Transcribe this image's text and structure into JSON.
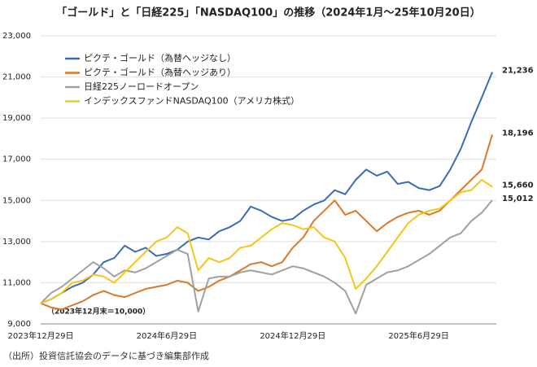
{
  "chart_data": {
    "type": "line",
    "title": "「ゴールド」と「日経225」「NASDAQ100」の推移（2024年1月〜25年10月20日）",
    "annotation": "（2023年12月末＝10,000）",
    "source": "（出所）投資信託協会のデータに基づき編集部作成",
    "categories": [
      "2023年12月29日",
      null,
      null,
      null,
      null,
      null,
      null,
      null,
      null,
      null,
      null,
      null,
      "2024年6月29日",
      null,
      null,
      null,
      null,
      null,
      null,
      null,
      null,
      null,
      null,
      null,
      "2024年12月29日",
      null,
      null,
      null,
      null,
      null,
      null,
      null,
      null,
      null,
      null,
      null,
      "2025年6月29日",
      null,
      null,
      null,
      null,
      null,
      null,
      null
    ],
    "ylim": [
      9000,
      23000
    ],
    "yticks": [
      {
        "value": 9000,
        "label": "9,000"
      },
      {
        "value": 11000,
        "label": "11,000"
      },
      {
        "value": 13000,
        "label": "13,000"
      },
      {
        "value": 15000,
        "label": "15,000"
      },
      {
        "value": 17000,
        "label": "17,000"
      },
      {
        "value": 19000,
        "label": "19,000"
      },
      {
        "value": 21000,
        "label": "21,000"
      },
      {
        "value": 23000,
        "label": "23,000"
      }
    ],
    "grid": true,
    "legend": "upper-left",
    "series": [
      {
        "name": "ピクテ・ゴールド（為替ヘッジなし）",
        "color": "#3b6bb5",
        "values": [
          10000,
          10200,
          10500,
          10800,
          11000,
          11400,
          12000,
          12200,
          12800,
          12500,
          12700,
          12300,
          12400,
          12600,
          13000,
          13200,
          13100,
          13500,
          13700,
          14000,
          14700,
          14500,
          14200,
          14000,
          14100,
          14500,
          14800,
          15000,
          15500,
          15300,
          16000,
          16500,
          16200,
          16400,
          15800,
          15900,
          15600,
          15500,
          15700,
          16500,
          17500,
          18800,
          20000,
          21236
        ],
        "value_labels": [
          null,
          null,
          null,
          null,
          null,
          null,
          null,
          null,
          null,
          null,
          null,
          null,
          null,
          null,
          null,
          null,
          null,
          null,
          null,
          null,
          null,
          null,
          null,
          null,
          null,
          null,
          null,
          null,
          null,
          null,
          null,
          null,
          null,
          null,
          null,
          null,
          null,
          null,
          null,
          null,
          null,
          null,
          null,
          "21,236"
        ]
      },
      {
        "name": "ピクテ・ゴールド（為替ヘッジあり）",
        "color": "#d9792b",
        "values": [
          10000,
          9800,
          9700,
          9900,
          10100,
          10400,
          10600,
          10400,
          10300,
          10500,
          10700,
          10800,
          10900,
          11100,
          11000,
          10600,
          10800,
          11100,
          11300,
          11600,
          11900,
          12000,
          11800,
          12000,
          12700,
          13200,
          14000,
          14500,
          15000,
          14300,
          14500,
          14000,
          13500,
          13900,
          14200,
          14400,
          14500,
          14300,
          14500,
          15000,
          15500,
          16000,
          16500,
          18196
        ],
        "value_labels": [
          null,
          null,
          null,
          null,
          null,
          null,
          null,
          null,
          null,
          null,
          null,
          null,
          null,
          null,
          null,
          null,
          null,
          null,
          null,
          null,
          null,
          null,
          null,
          null,
          null,
          null,
          null,
          null,
          null,
          null,
          null,
          null,
          null,
          null,
          null,
          null,
          null,
          null,
          null,
          null,
          null,
          null,
          null,
          "18,196"
        ]
      },
      {
        "name": "日経225ノーロードオープン",
        "color": "#a0a0a0",
        "values": [
          10000,
          10500,
          10800,
          11200,
          11600,
          12000,
          11700,
          11300,
          11600,
          11500,
          11700,
          12000,
          12300,
          12600,
          12400,
          9600,
          11200,
          11300,
          11300,
          11500,
          11600,
          11500,
          11400,
          11600,
          11800,
          11700,
          11500,
          11300,
          11000,
          10600,
          9500,
          10900,
          11200,
          11500,
          11600,
          11800,
          12100,
          12400,
          12800,
          13200,
          13400,
          14000,
          14400,
          15012
        ],
        "value_labels": [
          null,
          null,
          null,
          null,
          null,
          null,
          null,
          null,
          null,
          null,
          null,
          null,
          null,
          null,
          null,
          null,
          null,
          null,
          null,
          null,
          null,
          null,
          null,
          null,
          null,
          null,
          null,
          null,
          null,
          null,
          null,
          null,
          null,
          null,
          null,
          null,
          null,
          null,
          null,
          null,
          null,
          null,
          null,
          "15,012"
        ]
      },
      {
        "name": "インデックスファンドNASDAQ100（アメリカ株式）",
        "color": "#f5c518",
        "values": [
          10000,
          10200,
          10500,
          11000,
          11100,
          11400,
          11300,
          11000,
          11500,
          12000,
          12500,
          13000,
          13200,
          13700,
          13400,
          11600,
          12200,
          12000,
          12200,
          12700,
          12800,
          13200,
          13600,
          13900,
          13800,
          13600,
          13700,
          13200,
          13000,
          12200,
          10700,
          11200,
          11800,
          12500,
          13200,
          13900,
          14300,
          14500,
          14600,
          15000,
          15400,
          15500,
          16000,
          15660
        ],
        "value_labels": [
          null,
          null,
          null,
          null,
          null,
          null,
          null,
          null,
          null,
          null,
          null,
          null,
          null,
          null,
          null,
          null,
          null,
          null,
          null,
          null,
          null,
          null,
          null,
          null,
          null,
          null,
          null,
          null,
          null,
          null,
          null,
          null,
          null,
          null,
          null,
          null,
          null,
          null,
          null,
          null,
          null,
          null,
          null,
          "15,660"
        ]
      }
    ]
  }
}
